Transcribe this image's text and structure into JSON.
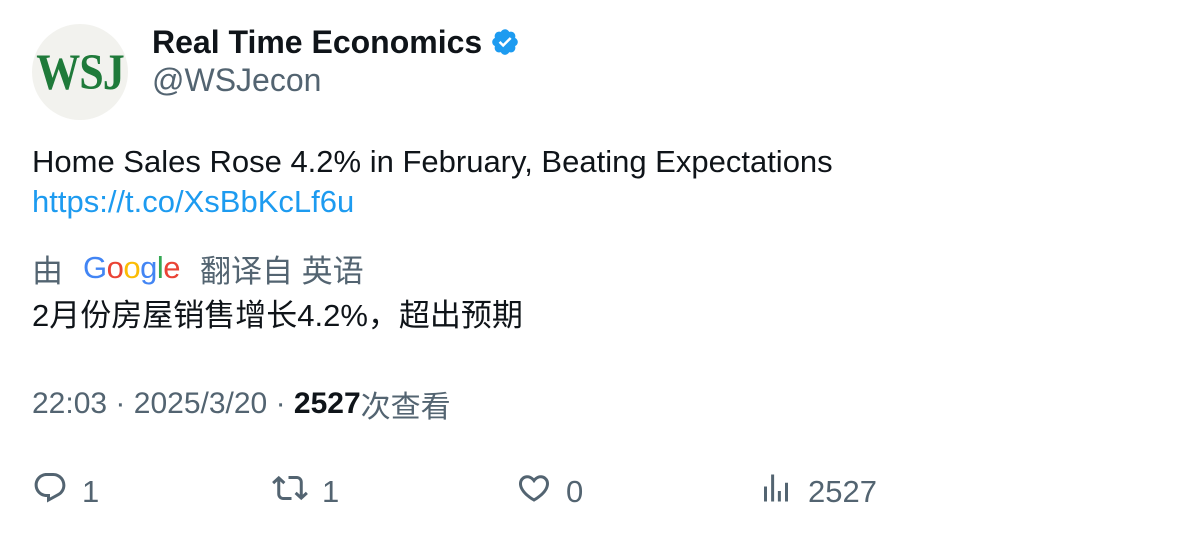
{
  "author": {
    "avatar_text": "WSJ",
    "display_name": "Real Time Economics",
    "handle": "@WSJecon",
    "verified": true
  },
  "tweet": {
    "text": "Home Sales Rose 4.2% in February, Beating Expectations",
    "link": "https://t.co/XsBbKcLf6u"
  },
  "translation": {
    "prefix": "由",
    "provider": "Google",
    "suffix": "翻译自 英语",
    "text": "2月份房屋销售增长4.2%，超出预期"
  },
  "meta": {
    "time": "22:03",
    "separator": "·",
    "date": "2025/3/20",
    "views_count": "2527",
    "views_label": "次查看"
  },
  "actions": {
    "reply_count": "1",
    "retweet_count": "1",
    "like_count": "0",
    "views_count": "2527"
  },
  "colors": {
    "link": "#1d9bf0",
    "secondary_text": "#536471",
    "primary_text": "#0f1419",
    "verified": "#1d9bf0"
  }
}
